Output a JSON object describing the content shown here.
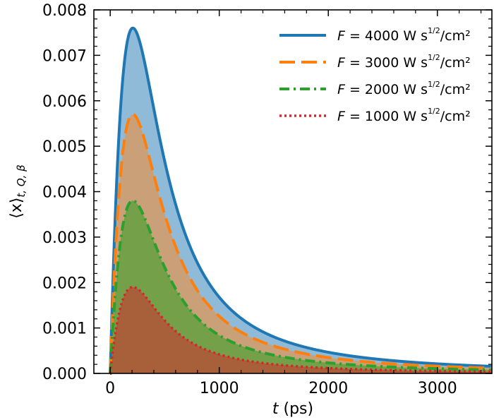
{
  "chart_data": {
    "type": "area",
    "title": "",
    "xlabel": {
      "var": "t",
      "unit": " (ps)"
    },
    "ylabel": {
      "main": "⟨x⟩",
      "sub": "t, Q, β"
    },
    "xlim": [
      -150,
      3500
    ],
    "ylim": [
      0,
      0.008
    ],
    "x_ticks": [
      0,
      1000,
      2000,
      3000
    ],
    "x_tick_labels": [
      "0",
      "1000",
      "2000",
      "3000"
    ],
    "y_ticks": [
      0,
      0.001,
      0.002,
      0.003,
      0.004,
      0.005,
      0.006,
      0.007,
      0.008
    ],
    "y_tick_labels": [
      "0.000",
      "0.001",
      "0.002",
      "0.003",
      "0.004",
      "0.005",
      "0.006",
      "0.007",
      "0.008"
    ],
    "grid": false,
    "legend_position": "top-right",
    "peak_time": 370,
    "onset_time": 0,
    "series": [
      {
        "label": {
          "var": "F",
          "eq": " = 4000 W s",
          "exp": "1/2",
          "unit": "/cm²"
        },
        "peak": 0.0076,
        "color": "#1f77b4",
        "fill": "#8fbbd9",
        "dash": "solid"
      },
      {
        "label": {
          "var": "F",
          "eq": " = 3000 W s",
          "exp": "1/2",
          "unit": "/cm²"
        },
        "peak": 0.0057,
        "color": "#ff7f0e",
        "fill": "#c9a078",
        "dash": "dashed"
      },
      {
        "label": {
          "var": "F",
          "eq": " = 2000 W s",
          "exp": "1/2",
          "unit": "/cm²"
        },
        "peak": 0.0038,
        "color": "#2ca02c",
        "fill": "#74a04a",
        "dash": "dashdot"
      },
      {
        "label": {
          "var": "F",
          "eq": " = 1000 W s",
          "exp": "1/2",
          "unit": "/cm²"
        },
        "peak": 0.0019,
        "color": "#d62728",
        "fill": "#a8603a",
        "dash": "dotted"
      }
    ]
  }
}
